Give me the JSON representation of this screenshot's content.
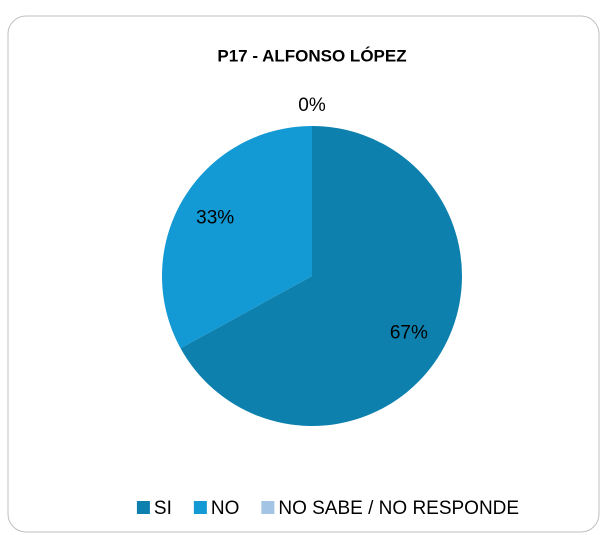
{
  "chart_data": {
    "type": "pie",
    "title": "P17 - ALFONSO LÓPEZ",
    "categories": [
      "SI",
      "NO",
      "NO SABE / NO RESPONDE"
    ],
    "values": [
      67,
      33,
      0
    ],
    "value_labels": [
      "67%",
      "33%",
      "0%"
    ],
    "colors": [
      "#0e80ae",
      "#1399d3",
      "#a3c4e4"
    ],
    "legend": "bottom"
  }
}
